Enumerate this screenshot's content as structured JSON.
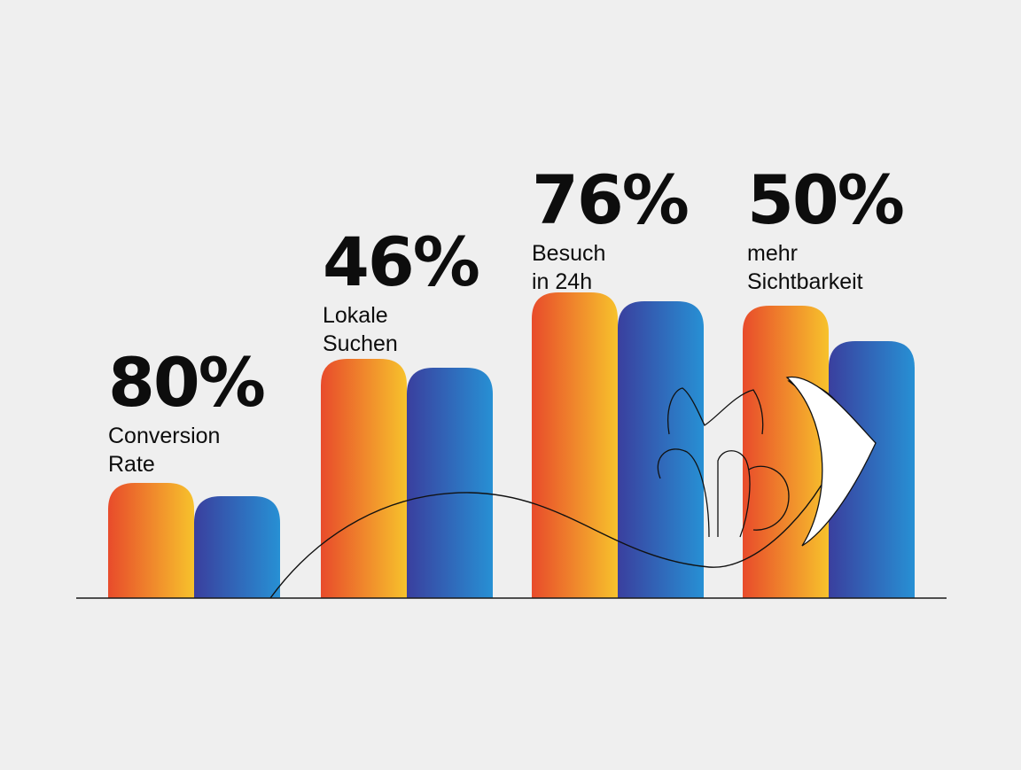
{
  "colors": {
    "background": "#efefef",
    "orange_start": "#e84b2b",
    "orange_end": "#f7c22c",
    "blue_start": "#3a3f9e",
    "blue_end": "#2790d4",
    "text": "#0d0d0d"
  },
  "chart_data": {
    "type": "bar",
    "categories": [
      "Conversion Rate",
      "Lokale Suchen",
      "Besuch in 24h",
      "mehr Sichtbarkeit"
    ],
    "series": [
      {
        "color": "orange-gradient",
        "values": [
          26,
          54,
          69,
          66
        ]
      },
      {
        "color": "blue-gradient",
        "values": [
          23,
          52,
          67,
          58
        ]
      }
    ],
    "ylim": [
      0,
      100
    ],
    "grid": false,
    "legend": "none",
    "annotations": [
      {
        "value": "80%",
        "line1": "Conversion",
        "line2": "Rate"
      },
      {
        "value": "46%",
        "line1": "Lokale",
        "line2": "Suchen"
      },
      {
        "value": "76%",
        "line1": "Besuch",
        "line2": "in 24h"
      },
      {
        "value": "50%",
        "line1": "mehr",
        "line2": "Sichtbarkeit"
      }
    ]
  }
}
